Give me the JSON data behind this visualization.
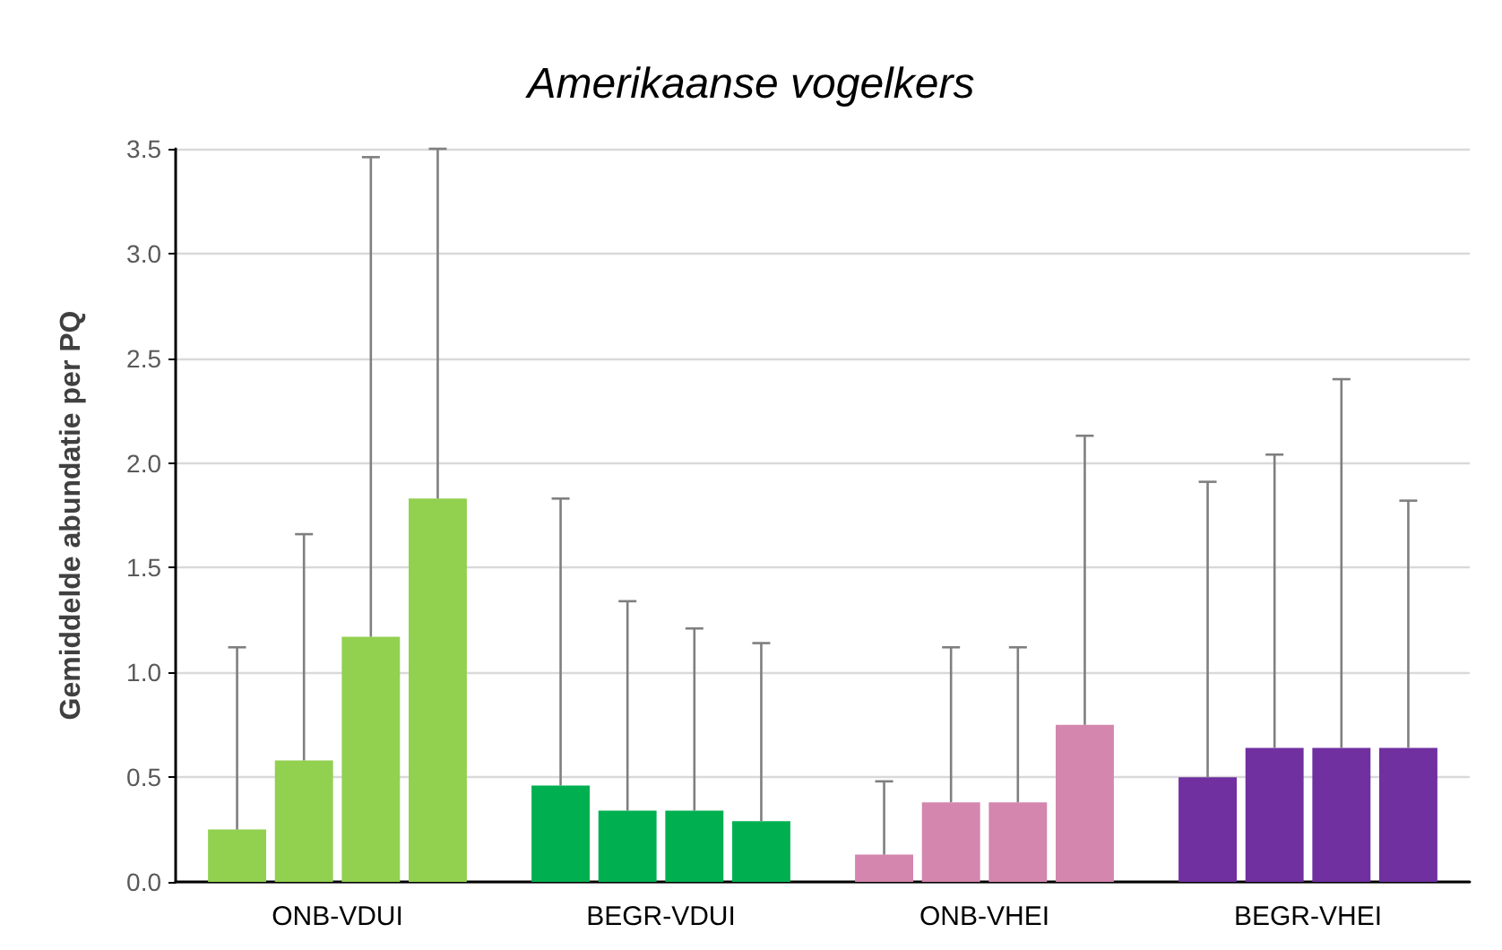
{
  "chart_data": {
    "type": "bar",
    "title": "Amerikaanse vogelkers",
    "ylabel": "Gemiddelde abundatie per PQ",
    "categories": [
      "ONB-VDUI",
      "BEGR-VDUI",
      "ONB-VHEI",
      "BEGR-VHEI"
    ],
    "series": [
      {
        "colors": [
          "#92d050",
          "#00b050",
          "#d486ae",
          "#7030a0"
        ],
        "values": [
          0.25,
          0.46,
          0.13,
          0.5
        ],
        "errors": [
          [
            0.25,
            1.12
          ],
          [
            0.46,
            1.83
          ],
          [
            0.13,
            0.48
          ],
          [
            0.5,
            1.91
          ]
        ]
      },
      {
        "colors": [
          "#92d050",
          "#00b050",
          "#d486ae",
          "#7030a0"
        ],
        "values": [
          0.58,
          0.34,
          0.38,
          0.64
        ],
        "errors": [
          [
            0.58,
            1.66
          ],
          [
            0.34,
            1.34
          ],
          [
            0.38,
            1.12
          ],
          [
            0.64,
            2.04
          ]
        ]
      },
      {
        "colors": [
          "#92d050",
          "#00b050",
          "#d486ae",
          "#7030a0"
        ],
        "values": [
          1.17,
          0.34,
          0.38,
          0.64
        ],
        "errors": [
          [
            1.17,
            3.46
          ],
          [
            0.34,
            1.21
          ],
          [
            0.38,
            1.12
          ],
          [
            0.64,
            2.4
          ]
        ]
      },
      {
        "colors": [
          "#92d050",
          "#00b050",
          "#d486ae",
          "#7030a0"
        ],
        "values": [
          1.83,
          0.29,
          0.75,
          0.64
        ],
        "errors": [
          [
            1.83,
            3.5
          ],
          [
            0.29,
            1.14
          ],
          [
            0.75,
            2.13
          ],
          [
            0.64,
            1.82
          ]
        ]
      }
    ],
    "ylim": [
      0,
      3.5
    ],
    "yticks": [
      {
        "value": 0,
        "label": "0.0"
      },
      {
        "value": 0.5,
        "label": "0.5"
      },
      {
        "value": 1,
        "label": "1.0"
      },
      {
        "value": 1.5,
        "label": "1.5"
      },
      {
        "value": 2,
        "label": "2.0"
      },
      {
        "value": 2.5,
        "label": "2.5"
      },
      {
        "value": 3,
        "label": "3.0"
      },
      {
        "value": 3.5,
        "label": "3.5"
      }
    ],
    "grid": "y"
  }
}
